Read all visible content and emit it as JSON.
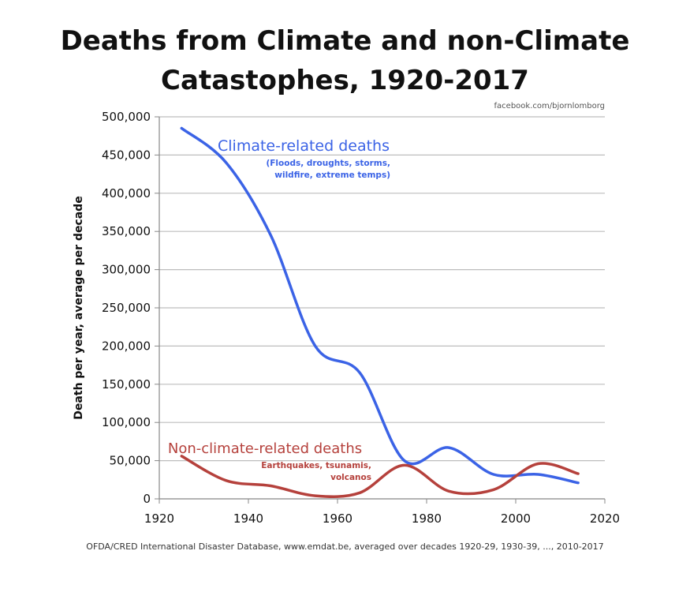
{
  "header": {
    "title_line1": "Deaths from Climate and non-Climate",
    "title_line2": "Catastophes, 1920-2017",
    "credit": "facebook.com/bjornlomborg"
  },
  "footnote": "OFDA/CRED International Disaster Database, www.emdat.be, averaged over decades 1920-29, 1930-39, ..., 2010-2017",
  "chart_data": {
    "type": "line",
    "title": "Deaths from Climate and non-Climate Catastophes, 1920-2017",
    "xlabel": "",
    "ylabel": "Death per year, average per decade",
    "xlim": [
      1920,
      2020
    ],
    "ylim": [
      0,
      500000
    ],
    "grid": true,
    "x_ticks": [
      "1920",
      "1940",
      "1960",
      "1980",
      "2000",
      "2020"
    ],
    "y_ticks": [
      "0",
      "50,000",
      "100,000",
      "150,000",
      "200,000",
      "250,000",
      "300,000",
      "350,000",
      "400,000",
      "450,000",
      "500,000"
    ],
    "x_tick_values": [
      1920,
      1940,
      1960,
      1980,
      2000,
      2020
    ],
    "y_tick_values": [
      0,
      50000,
      100000,
      150000,
      200000,
      250000,
      300000,
      350000,
      400000,
      450000,
      500000
    ],
    "series": [
      {
        "name": "Climate-related deaths",
        "sublabel_line1": "(Floods, droughts, storms,",
        "sublabel_line2": "wildfire, extreme temps)",
        "color": "#3b63e6",
        "x": [
          1925,
          1935,
          1945,
          1955,
          1965,
          1975,
          1985,
          1995,
          2005,
          2014
        ],
        "values": [
          485000,
          440000,
          345000,
          200000,
          165000,
          50000,
          67000,
          32000,
          32000,
          21000
        ]
      },
      {
        "name": "Non-climate-related deaths",
        "sublabel_line1": "Earthquakes, tsunamis,",
        "sublabel_line2": "volcanos",
        "color": "#b5413c",
        "x": [
          1925,
          1935,
          1945,
          1955,
          1965,
          1975,
          1985,
          1995,
          2005,
          2014
        ],
        "values": [
          56000,
          24000,
          17000,
          4000,
          8000,
          44000,
          10000,
          12000,
          46000,
          33000
        ]
      }
    ]
  }
}
